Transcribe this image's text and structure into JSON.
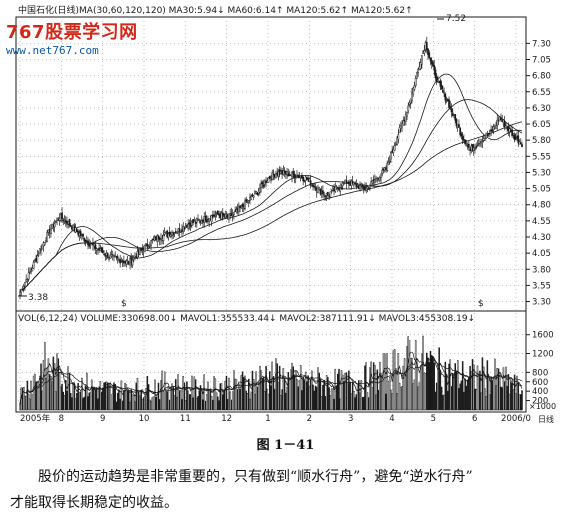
{
  "colors": {
    "ink": "#1a1a1a",
    "grid": "#9a9a9a",
    "brand_red": "#d12a1a",
    "brand_blue": "#0a56a8"
  },
  "brand": {
    "logo_text": "767股票学习网",
    "url": "www.net767.com"
  },
  "price_panel": {
    "header": "中国石化(日线)MA(30,60,120,120) MA30:5.94↓ MA60:6.14↑ MA120:5.62↑ MA120:5.62↑",
    "high_label": "7.52",
    "low_label": "3.38"
  },
  "volume_panel": {
    "header": "VOL(6,12,24) VOLUME:330698.00↓ MAVOL1:355533.44↓ MAVOL2:387111.91↓ MAVOL3:455308.19↓",
    "unit_label": "×1000",
    "flag_label": "日线"
  },
  "figure_caption": "图 1－41",
  "paragraph": {
    "line1": "股价的运动趋势是非常重要的，只有做到“顺水行舟”，避免“逆水行舟”",
    "line2": "才能取得长期稳定的收益。"
  },
  "chart_data": [
    {
      "type": "candlestick",
      "title": "中国石化(日线)",
      "ylim": [
        3.2,
        7.6
      ],
      "y_ticks": [
        "7.30",
        "7.05",
        "6.80",
        "6.55",
        "6.30",
        "6.05",
        "5.80",
        "5.55",
        "5.30",
        "5.05",
        "4.80",
        "4.55",
        "4.30",
        "4.05",
        "3.80",
        "3.55",
        "3.30"
      ],
      "x_tick_labels": [
        "2005年",
        "8",
        "9",
        "10",
        "11",
        "12",
        "1",
        "2",
        "3",
        "4",
        "5",
        "6",
        "2006/0"
      ],
      "annotations": [
        {
          "label": "7.52",
          "x": "5",
          "y": 7.52
        },
        {
          "label": "3.38",
          "x": "2005年",
          "y": 3.38
        }
      ],
      "series": [
        {
          "name": "MA30",
          "last": 5.94
        },
        {
          "name": "MA60",
          "last": 6.14
        },
        {
          "name": "MA120",
          "last": 5.62
        }
      ],
      "anchor_closes": [
        [
          0,
          3.45
        ],
        [
          8,
          3.75
        ],
        [
          16,
          4.1
        ],
        [
          24,
          4.4
        ],
        [
          32,
          4.62
        ],
        [
          40,
          4.5
        ],
        [
          48,
          4.35
        ],
        [
          56,
          4.2
        ],
        [
          64,
          4.1
        ],
        [
          72,
          4.0
        ],
        [
          80,
          3.95
        ],
        [
          88,
          3.9
        ],
        [
          96,
          4.05
        ],
        [
          104,
          4.2
        ],
        [
          112,
          4.3
        ],
        [
          120,
          4.35
        ],
        [
          128,
          4.4
        ],
        [
          136,
          4.5
        ],
        [
          144,
          4.55
        ],
        [
          152,
          4.6
        ],
        [
          160,
          4.65
        ],
        [
          168,
          4.6
        ],
        [
          176,
          4.7
        ],
        [
          184,
          4.85
        ],
        [
          192,
          5.0
        ],
        [
          200,
          5.2
        ],
        [
          208,
          5.3
        ],
        [
          216,
          5.28
        ],
        [
          224,
          5.25
        ],
        [
          232,
          5.2
        ],
        [
          240,
          5.05
        ],
        [
          248,
          4.95
        ],
        [
          256,
          5.05
        ],
        [
          264,
          5.15
        ],
        [
          272,
          5.1
        ],
        [
          280,
          5.05
        ],
        [
          288,
          5.2
        ],
        [
          296,
          5.35
        ],
        [
          304,
          5.8
        ],
        [
          312,
          6.2
        ],
        [
          318,
          6.6
        ],
        [
          324,
          7.05
        ],
        [
          328,
          7.3
        ],
        [
          334,
          6.9
        ],
        [
          340,
          6.6
        ],
        [
          346,
          6.4
        ],
        [
          352,
          6.1
        ],
        [
          358,
          5.85
        ],
        [
          364,
          5.65
        ],
        [
          370,
          5.75
        ],
        [
          376,
          5.85
        ],
        [
          382,
          5.95
        ],
        [
          388,
          6.15
        ],
        [
          394,
          6.0
        ],
        [
          400,
          5.85
        ],
        [
          406,
          5.75
        ]
      ]
    },
    {
      "type": "bar",
      "title": "VOL(6,12,24)",
      "y_ticks": [
        "1600",
        "1200",
        "800",
        "600",
        "400",
        "200"
      ],
      "unit": "×1000",
      "series": [
        {
          "name": "VOLUME",
          "last": 330698.0
        },
        {
          "name": "MAVOL1",
          "last": 355533.44
        },
        {
          "name": "MAVOL2",
          "last": 387111.91
        },
        {
          "name": "MAVOL3",
          "last": 455308.19
        }
      ],
      "anchor_volumes": [
        [
          0,
          350
        ],
        [
          20,
          1000
        ],
        [
          40,
          700
        ],
        [
          60,
          500
        ],
        [
          80,
          450
        ],
        [
          100,
          500
        ],
        [
          120,
          600
        ],
        [
          140,
          500
        ],
        [
          160,
          550
        ],
        [
          180,
          600
        ],
        [
          200,
          800
        ],
        [
          220,
          700
        ],
        [
          240,
          650
        ],
        [
          260,
          600
        ],
        [
          280,
          700
        ],
        [
          300,
          900
        ],
        [
          320,
          1200
        ],
        [
          340,
          900
        ],
        [
          360,
          750
        ],
        [
          380,
          800
        ],
        [
          400,
          550
        ],
        [
          406,
          450
        ]
      ]
    }
  ]
}
